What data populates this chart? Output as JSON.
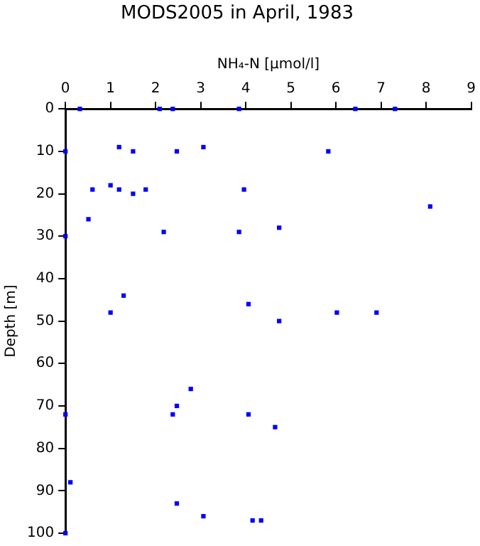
{
  "chart_data": {
    "type": "scatter",
    "title": "MODS2005 in April, 1983",
    "xlabel": "NH₄-N [µmol/l]",
    "ylabel": "Depth [m]",
    "color": "#0000ff",
    "marker": "square",
    "x": [
      0.32,
      2.09,
      2.38,
      3.85,
      6.43,
      7.31,
      0,
      1.19,
      1.5,
      2.47,
      3.06,
      5.83,
      0.6,
      1.0,
      1.19,
      1.5,
      1.78,
      3.96,
      0.51,
      0,
      2.18,
      3.85,
      8.09,
      4.74,
      1.29,
      1.0,
      4.06,
      6.02,
      6.9,
      4.74,
      2.78,
      2.47,
      0,
      2.38,
      4.06,
      4.65,
      0.11,
      2.47,
      3.06,
      4.15,
      4.34,
      0
    ],
    "values": [
      0,
      0,
      0,
      0,
      0,
      0,
      10,
      9,
      10,
      10,
      9,
      10,
      19,
      18,
      19,
      20,
      19,
      19,
      26,
      30,
      29,
      29,
      23,
      28,
      44,
      48,
      46,
      48,
      48,
      50,
      66,
      70,
      72,
      72,
      72,
      75,
      88,
      93,
      96,
      97,
      97,
      100
    ],
    "xlim": [
      0,
      9
    ],
    "xticks": [
      0,
      1,
      2,
      3,
      4,
      5,
      6,
      7,
      8,
      9
    ],
    "ylim": [
      100,
      0
    ],
    "yticks": [
      0,
      10,
      20,
      30,
      40,
      50,
      60,
      70,
      80,
      90,
      100
    ]
  }
}
